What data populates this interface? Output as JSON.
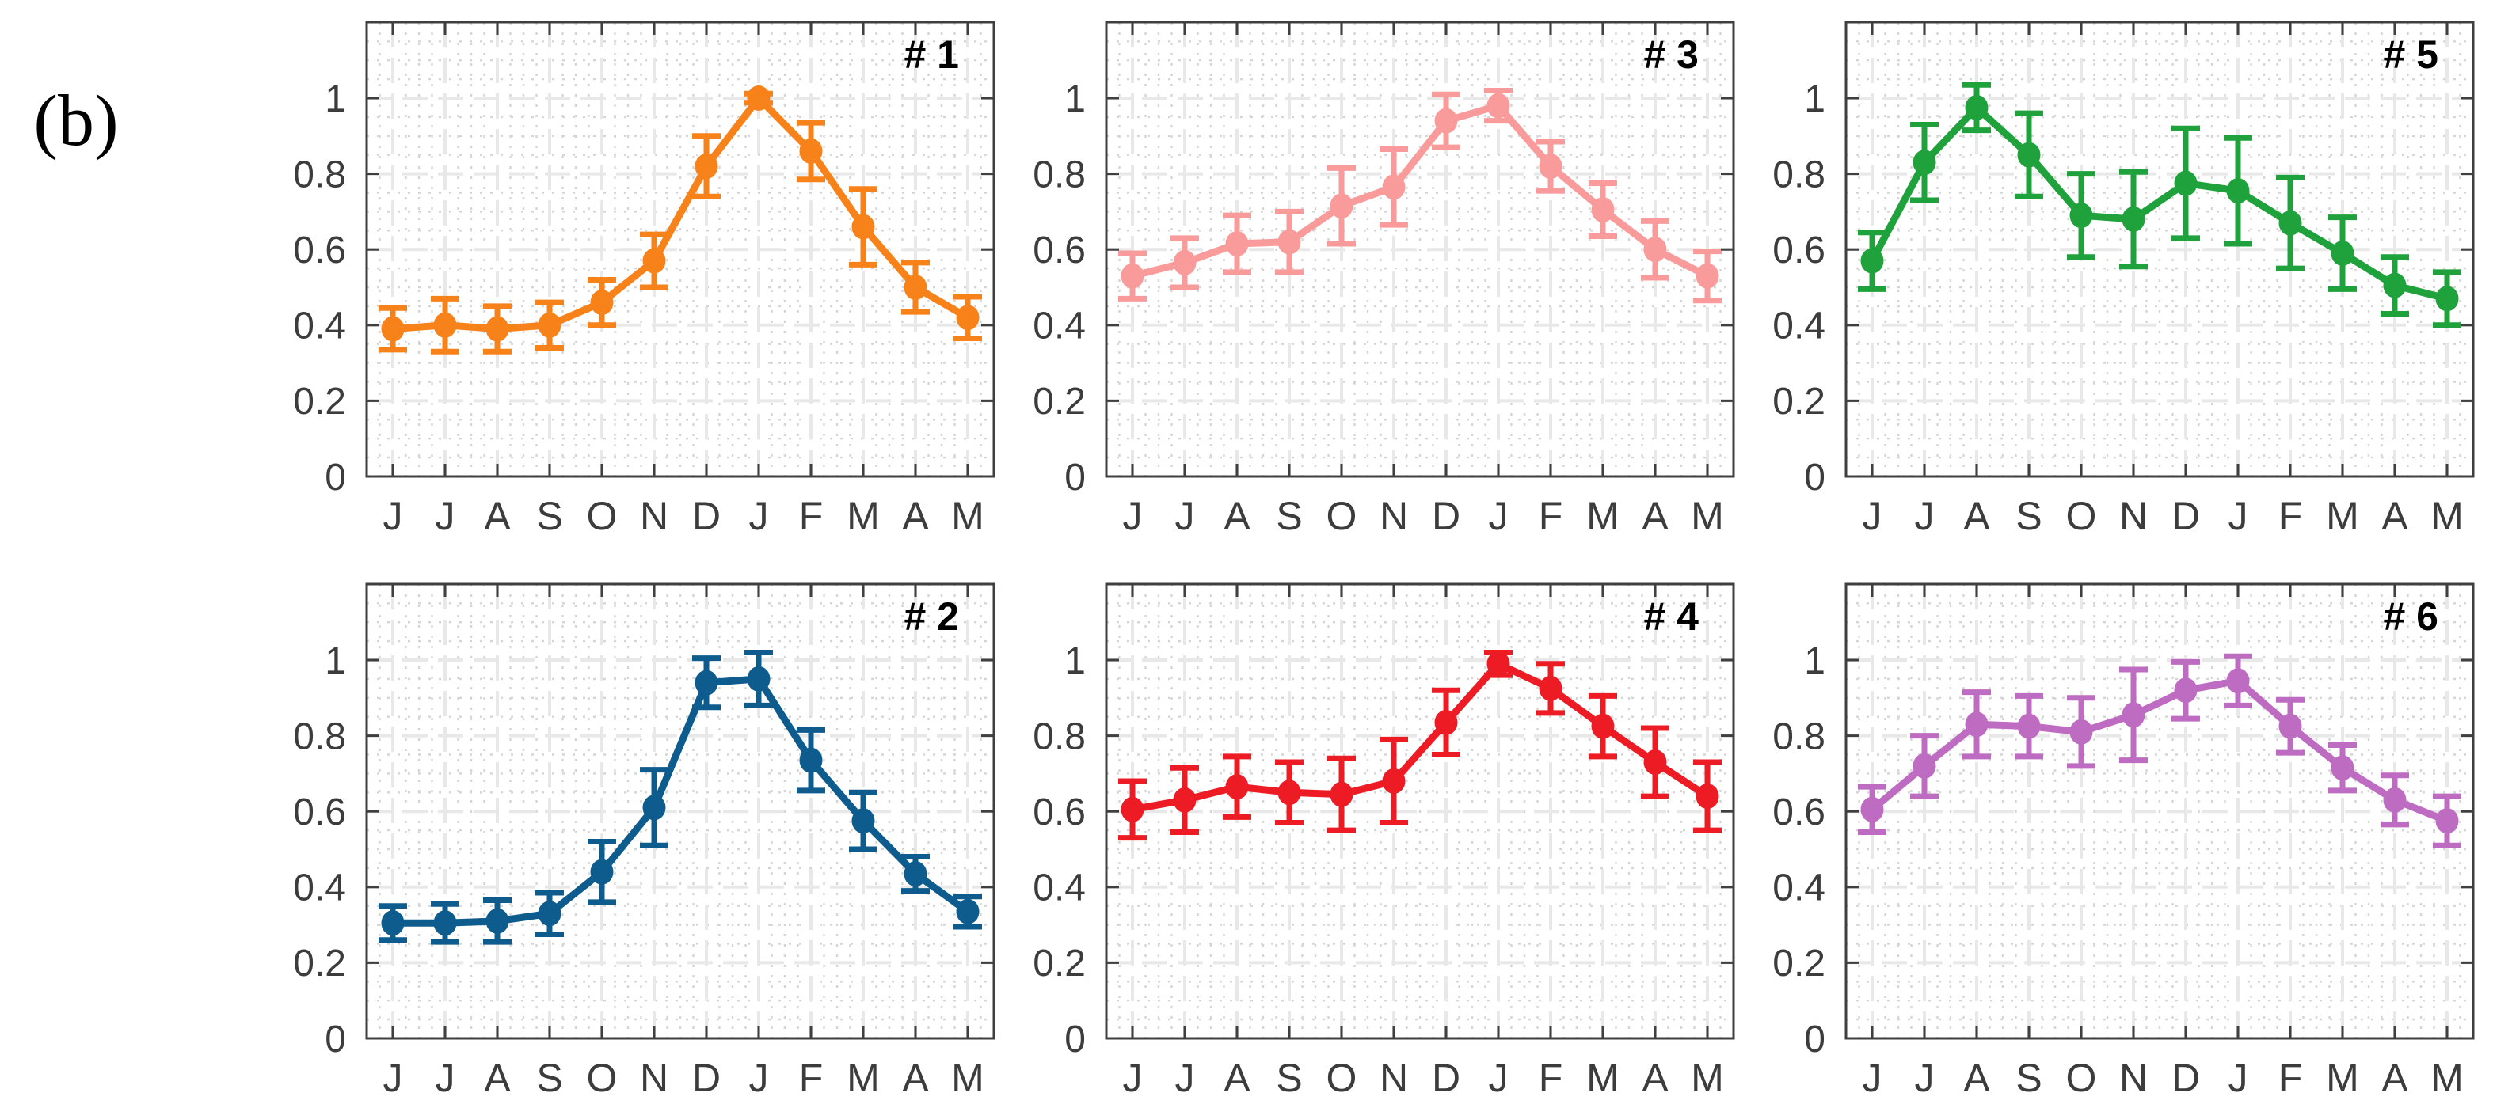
{
  "figure": {
    "label": "(b)",
    "background": "#FFFFFF"
  },
  "style": {
    "axis_color": "#3F3F3F",
    "tick_label_color": "#3C3C3C",
    "panel_label_color": "#000000",
    "major_grid_color": "#E8E8E8",
    "minor_grid_color": "#D5D5D5"
  },
  "chart_data": [
    {
      "type": "line",
      "panel_label": "# 1",
      "row": 0,
      "col": 0,
      "color": "#F8821A",
      "categories": [
        "J",
        "J",
        "A",
        "S",
        "O",
        "N",
        "D",
        "J",
        "F",
        "M",
        "A",
        "M"
      ],
      "values": [
        0.39,
        0.4,
        0.39,
        0.4,
        0.46,
        0.57,
        0.82,
        1.0,
        0.86,
        0.66,
        0.5,
        0.42
      ],
      "errors": [
        0.055,
        0.07,
        0.06,
        0.06,
        0.06,
        0.07,
        0.08,
        0.012,
        0.075,
        0.1,
        0.065,
        0.055
      ],
      "ylim": [
        0,
        1.2
      ],
      "yticks": [
        0,
        0.2,
        0.4,
        0.6,
        0.8,
        1
      ],
      "ytick_labels": [
        "0",
        "0.2",
        "0.4",
        "0.6",
        "0.8",
        "1"
      ],
      "grid": "major dashed + minor dotted",
      "legend": "none"
    },
    {
      "type": "line",
      "panel_label": "# 3",
      "row": 0,
      "col": 1,
      "color": "#FA9B9B",
      "categories": [
        "J",
        "J",
        "A",
        "S",
        "O",
        "N",
        "D",
        "J",
        "F",
        "M",
        "A",
        "M"
      ],
      "values": [
        0.53,
        0.565,
        0.615,
        0.62,
        0.715,
        0.765,
        0.94,
        0.98,
        0.82,
        0.705,
        0.6,
        0.53
      ],
      "errors": [
        0.06,
        0.065,
        0.075,
        0.08,
        0.1,
        0.1,
        0.07,
        0.04,
        0.065,
        0.07,
        0.075,
        0.065
      ],
      "ylim": [
        0,
        1.2
      ],
      "yticks": [
        0,
        0.2,
        0.4,
        0.6,
        0.8,
        1
      ],
      "ytick_labels": [
        "0",
        "0.2",
        "0.4",
        "0.6",
        "0.8",
        "1"
      ],
      "grid": "major dashed + minor dotted",
      "legend": "none"
    },
    {
      "type": "line",
      "panel_label": "# 5",
      "row": 0,
      "col": 2,
      "color": "#1FA23C",
      "categories": [
        "J",
        "J",
        "A",
        "S",
        "O",
        "N",
        "D",
        "J",
        "F",
        "M",
        "A",
        "M"
      ],
      "values": [
        0.57,
        0.83,
        0.975,
        0.85,
        0.69,
        0.68,
        0.775,
        0.755,
        0.67,
        0.59,
        0.505,
        0.47
      ],
      "errors": [
        0.075,
        0.1,
        0.06,
        0.11,
        0.11,
        0.125,
        0.145,
        0.14,
        0.12,
        0.095,
        0.075,
        0.07
      ],
      "ylim": [
        0,
        1.2
      ],
      "yticks": [
        0,
        0.2,
        0.4,
        0.6,
        0.8,
        1
      ],
      "ytick_labels": [
        "0",
        "0.2",
        "0.4",
        "0.6",
        "0.8",
        "1"
      ],
      "grid": "major dashed + minor dotted",
      "legend": "none"
    },
    {
      "type": "line",
      "panel_label": "# 2",
      "row": 1,
      "col": 0,
      "color": "#0E5C8D",
      "categories": [
        "J",
        "J",
        "A",
        "S",
        "O",
        "N",
        "D",
        "J",
        "F",
        "M",
        "A",
        "M"
      ],
      "values": [
        0.305,
        0.305,
        0.31,
        0.33,
        0.44,
        0.61,
        0.94,
        0.95,
        0.735,
        0.575,
        0.435,
        0.335
      ],
      "errors": [
        0.045,
        0.05,
        0.055,
        0.055,
        0.08,
        0.1,
        0.065,
        0.07,
        0.08,
        0.075,
        0.045,
        0.04
      ],
      "ylim": [
        0,
        1.2
      ],
      "yticks": [
        0,
        0.2,
        0.4,
        0.6,
        0.8,
        1
      ],
      "ytick_labels": [
        "0",
        "0.2",
        "0.4",
        "0.6",
        "0.8",
        "1"
      ],
      "grid": "major dashed + minor dotted",
      "legend": "none"
    },
    {
      "type": "line",
      "panel_label": "# 4",
      "row": 1,
      "col": 1,
      "color": "#ED1C24",
      "categories": [
        "J",
        "J",
        "A",
        "S",
        "O",
        "N",
        "D",
        "J",
        "F",
        "M",
        "A",
        "M"
      ],
      "values": [
        0.605,
        0.63,
        0.665,
        0.65,
        0.645,
        0.68,
        0.835,
        0.99,
        0.925,
        0.825,
        0.73,
        0.64
      ],
      "errors": [
        0.075,
        0.085,
        0.08,
        0.08,
        0.095,
        0.11,
        0.085,
        0.03,
        0.065,
        0.08,
        0.09,
        0.09
      ],
      "ylim": [
        0,
        1.2
      ],
      "yticks": [
        0,
        0.2,
        0.4,
        0.6,
        0.8,
        1
      ],
      "ytick_labels": [
        "0",
        "0.2",
        "0.4",
        "0.6",
        "0.8",
        "1"
      ],
      "grid": "major dashed + minor dotted",
      "legend": "none"
    },
    {
      "type": "line",
      "panel_label": "# 6",
      "row": 1,
      "col": 2,
      "color": "#BE6CC1",
      "categories": [
        "J",
        "J",
        "A",
        "S",
        "O",
        "N",
        "D",
        "J",
        "F",
        "M",
        "A",
        "M"
      ],
      "values": [
        0.605,
        0.72,
        0.83,
        0.825,
        0.81,
        0.855,
        0.92,
        0.945,
        0.825,
        0.715,
        0.63,
        0.575
      ],
      "errors": [
        0.06,
        0.08,
        0.085,
        0.08,
        0.09,
        0.12,
        0.075,
        0.065,
        0.07,
        0.06,
        0.065,
        0.065
      ],
      "ylim": [
        0,
        1.2
      ],
      "yticks": [
        0,
        0.2,
        0.4,
        0.6,
        0.8,
        1
      ],
      "ytick_labels": [
        "0",
        "0.2",
        "0.4",
        "0.6",
        "0.8",
        "1"
      ],
      "grid": "major dashed + minor dotted",
      "legend": "none"
    }
  ]
}
